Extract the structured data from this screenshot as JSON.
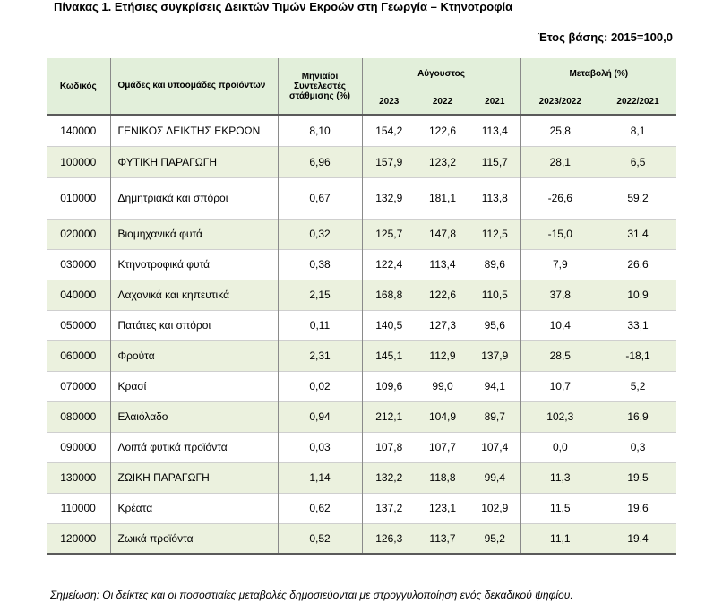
{
  "title": "Πίνακας 1. Ετήσιες συγκρίσεις Δεικτών Τιμών Εκροών στη Γεωργία – Κτηνοτροφία",
  "base_year": "Έτος βάσης: 2015=100,0",
  "headers": {
    "code": "Κωδικός",
    "group": "Ομάδες και υποομάδες προϊόντων",
    "weight": "Μηνιαίοι Συντελεστές στάθμισης (%)",
    "august": "Αύγουστος",
    "change": "Μεταβολή (%)",
    "y2023": "2023",
    "y2022": "2022",
    "y2021": "2021",
    "r1": "2023/2022",
    "r2": "2022/2021"
  },
  "rows": [
    {
      "code": "140000",
      "name": "ΓΕΝΙΚΟΣ ΔΕΙΚΤΗΣ ΕΚΡΟΩΝ",
      "weight": "8,10",
      "y2023": "154,2",
      "y2022": "122,6",
      "y2021": "113,4",
      "r1": "25,8",
      "r2": "8,1"
    },
    {
      "code": "100000",
      "name": "ΦΥΤΙΚΗ ΠΑΡΑΓΩΓΗ",
      "weight": "6,96",
      "y2023": "157,9",
      "y2022": "123,2",
      "y2021": "115,7",
      "r1": "28,1",
      "r2": "6,5"
    },
    {
      "code": "010000",
      "name": "Δημητριακά και σπόροι",
      "weight": "0,67",
      "y2023": "132,9",
      "y2022": "181,1",
      "y2021": "113,8",
      "r1": "-26,6",
      "r2": "59,2"
    },
    {
      "code": "020000",
      "name": "Βιομηχανικά φυτά",
      "weight": "0,32",
      "y2023": "125,7",
      "y2022": "147,8",
      "y2021": "112,5",
      "r1": "-15,0",
      "r2": "31,4"
    },
    {
      "code": "030000",
      "name": "Κτηνοτροφικά φυτά",
      "weight": "0,38",
      "y2023": "122,4",
      "y2022": "113,4",
      "y2021": "89,6",
      "r1": "7,9",
      "r2": "26,6"
    },
    {
      "code": "040000",
      "name": "Λαχανικά και κηπευτικά",
      "weight": "2,15",
      "y2023": "168,8",
      "y2022": "122,6",
      "y2021": "110,5",
      "r1": "37,8",
      "r2": "10,9"
    },
    {
      "code": "050000",
      "name": "Πατάτες και σπόροι",
      "weight": "0,11",
      "y2023": "140,5",
      "y2022": "127,3",
      "y2021": "95,6",
      "r1": "10,4",
      "r2": "33,1"
    },
    {
      "code": "060000",
      "name": "Φρούτα",
      "weight": "2,31",
      "y2023": "145,1",
      "y2022": "112,9",
      "y2021": "137,9",
      "r1": "28,5",
      "r2": "-18,1"
    },
    {
      "code": "070000",
      "name": "Κρασί",
      "weight": "0,02",
      "y2023": "109,6",
      "y2022": "99,0",
      "y2021": "94,1",
      "r1": "10,7",
      "r2": "5,2"
    },
    {
      "code": "080000",
      "name": "Ελαιόλαδο",
      "weight": "0,94",
      "y2023": "212,1",
      "y2022": "104,9",
      "y2021": "89,7",
      "r1": "102,3",
      "r2": "16,9"
    },
    {
      "code": "090000",
      "name": "Λοιπά φυτικά προϊόντα",
      "weight": "0,03",
      "y2023": "107,8",
      "y2022": "107,7",
      "y2021": "107,4",
      "r1": "0,0",
      "r2": "0,3"
    },
    {
      "code": "130000",
      "name": "ΖΩΙΚΗ ΠΑΡΑΓΩΓΗ",
      "weight": "1,14",
      "y2023": "132,2",
      "y2022": "118,8",
      "y2021": "99,4",
      "r1": "11,3",
      "r2": "19,5"
    },
    {
      "code": "110000",
      "name": "Κρέατα",
      "weight": "0,62",
      "y2023": "137,2",
      "y2022": "123,1",
      "y2021": "102,9",
      "r1": "11,5",
      "r2": "19,6"
    },
    {
      "code": "120000",
      "name": "Ζωικά προϊόντα",
      "weight": "0,52",
      "y2023": "126,3",
      "y2022": "113,7",
      "y2021": "95,2",
      "r1": "11,1",
      "r2": "19,4"
    }
  ],
  "note": "Σημείωση: Οι δείκτες και οι ποσοστιαίες μεταβολές δημοσιεύονται με στρογγυλοποίηση ενός δεκαδικού ψηφίου."
}
